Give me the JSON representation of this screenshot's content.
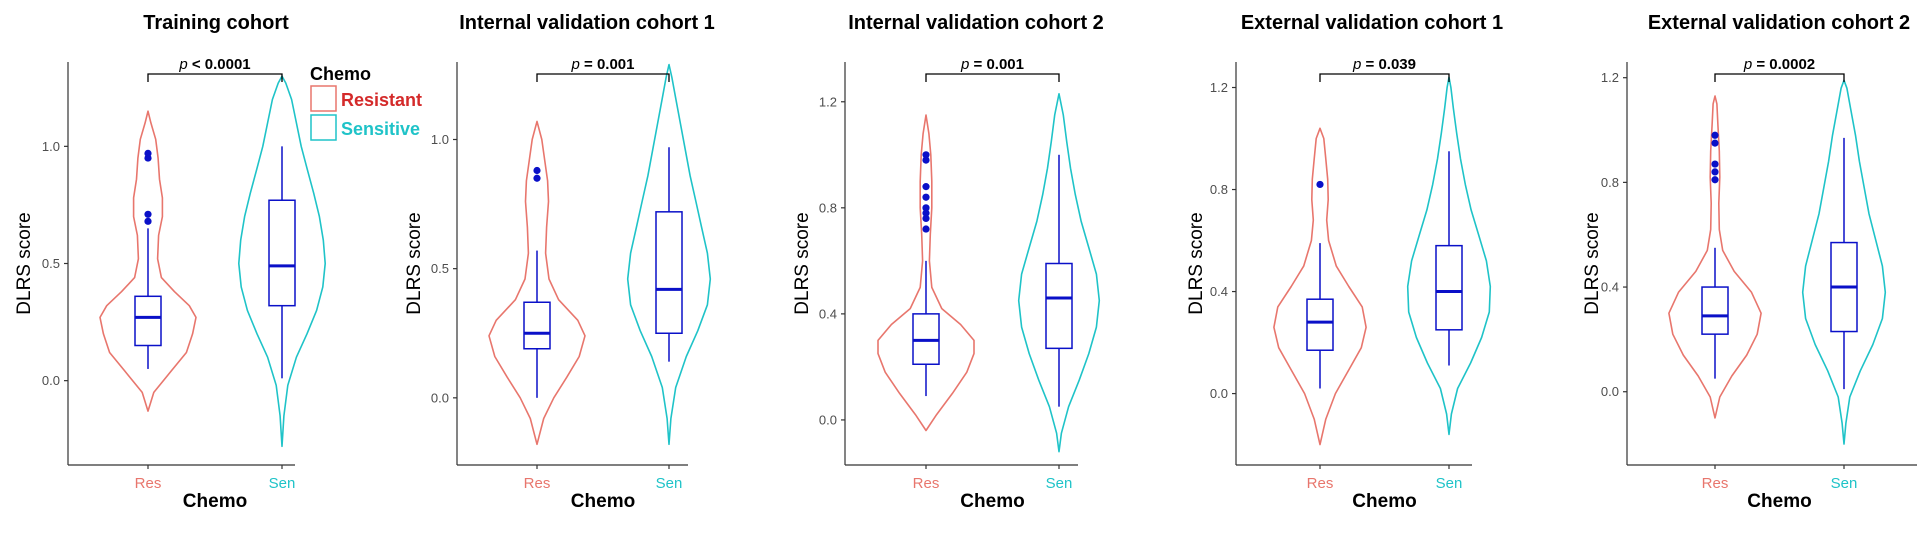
{
  "chart_data": {
    "type": "violin",
    "shared": {
      "xlabel": "Chemo",
      "ylabel": "DLRS score",
      "categories": [
        "Res",
        "Sen"
      ],
      "colors": {
        "Res": "#E8766D",
        "Sen": "#1FC3C8",
        "box": "#0A10C8",
        "outlier": "#0A10C8",
        "axis": "#333333"
      },
      "legend": {
        "title": "Chemo",
        "placement": "top-right of first panel",
        "items": [
          {
            "label": "Resistant",
            "color": "#E8766D",
            "text_color": "#D42A2A"
          },
          {
            "label": "Sensitive",
            "color": "#1FC3C8",
            "text_color": "#1FC3C8"
          }
        ]
      }
    },
    "panels": [
      {
        "title": "Training cohort",
        "pvalue": {
          "prefix": "p",
          "text": " < 0.0001"
        },
        "ylim": [
          -0.36,
          1.36
        ],
        "yticks": [
          0.0,
          0.5,
          1.0
        ],
        "ytick_labels": [
          "0.0",
          "0.5",
          "1.0"
        ],
        "groups": [
          {
            "name": "Res",
            "violin": [
              [
                -0.13,
                0
              ],
              [
                -0.05,
                0.12
              ],
              [
                0.04,
                0.48
              ],
              [
                0.12,
                0.8
              ],
              [
                0.2,
                0.93
              ],
              [
                0.27,
                1.0
              ],
              [
                0.32,
                0.86
              ],
              [
                0.38,
                0.55
              ],
              [
                0.44,
                0.28
              ],
              [
                0.52,
                0.2
              ],
              [
                0.62,
                0.22
              ],
              [
                0.7,
                0.3
              ],
              [
                0.78,
                0.3
              ],
              [
                0.86,
                0.24
              ],
              [
                0.95,
                0.21
              ],
              [
                1.03,
                0.16
              ],
              [
                1.1,
                0.06
              ],
              [
                1.15,
                0
              ]
            ],
            "box": {
              "whisker_low": 0.05,
              "q1": 0.15,
              "median": 0.27,
              "q3": 0.36,
              "whisker_high": 0.65
            },
            "outliers": [
              0.68,
              0.71,
              0.95,
              0.97
            ]
          },
          {
            "name": "Sen",
            "violin": [
              [
                -0.28,
                0
              ],
              [
                -0.15,
                0.04
              ],
              [
                -0.02,
                0.12
              ],
              [
                0.1,
                0.3
              ],
              [
                0.2,
                0.52
              ],
              [
                0.3,
                0.72
              ],
              [
                0.4,
                0.85
              ],
              [
                0.5,
                0.9
              ],
              [
                0.6,
                0.86
              ],
              [
                0.7,
                0.78
              ],
              [
                0.8,
                0.66
              ],
              [
                0.9,
                0.53
              ],
              [
                1.0,
                0.4
              ],
              [
                1.1,
                0.3
              ],
              [
                1.2,
                0.2
              ],
              [
                1.27,
                0.08
              ],
              [
                1.3,
                0
              ]
            ],
            "box": {
              "whisker_low": 0.01,
              "q1": 0.32,
              "median": 0.49,
              "q3": 0.77,
              "whisker_high": 1.0
            },
            "outliers": []
          }
        ]
      },
      {
        "title": "Internal validation cohort 1",
        "pvalue": {
          "prefix": "p",
          "text": " = 0.001"
        },
        "ylim": [
          -0.26,
          1.3
        ],
        "yticks": [
          0.0,
          0.5,
          1.0
        ],
        "ytick_labels": [
          "0.0",
          "0.5",
          "1.0"
        ],
        "groups": [
          {
            "name": "Res",
            "violin": [
              [
                -0.18,
                0
              ],
              [
                -0.08,
                0.14
              ],
              [
                0.0,
                0.35
              ],
              [
                0.08,
                0.62
              ],
              [
                0.16,
                0.88
              ],
              [
                0.24,
                1.0
              ],
              [
                0.3,
                0.85
              ],
              [
                0.38,
                0.45
              ],
              [
                0.46,
                0.25
              ],
              [
                0.56,
                0.18
              ],
              [
                0.66,
                0.2
              ],
              [
                0.76,
                0.24
              ],
              [
                0.84,
                0.22
              ],
              [
                0.92,
                0.16
              ],
              [
                1.0,
                0.1
              ],
              [
                1.07,
                0
              ]
            ],
            "box": {
              "whisker_low": 0.0,
              "q1": 0.19,
              "median": 0.25,
              "q3": 0.37,
              "whisker_high": 0.57
            },
            "outliers": [
              0.85,
              0.88
            ]
          },
          {
            "name": "Sen",
            "violin": [
              [
                -0.18,
                0
              ],
              [
                -0.08,
                0.04
              ],
              [
                0.04,
                0.14
              ],
              [
                0.16,
                0.36
              ],
              [
                0.26,
                0.6
              ],
              [
                0.36,
                0.8
              ],
              [
                0.46,
                0.86
              ],
              [
                0.56,
                0.8
              ],
              [
                0.66,
                0.68
              ],
              [
                0.76,
                0.56
              ],
              [
                0.86,
                0.44
              ],
              [
                0.96,
                0.34
              ],
              [
                1.06,
                0.24
              ],
              [
                1.16,
                0.14
              ],
              [
                1.24,
                0.06
              ],
              [
                1.29,
                0
              ]
            ],
            "box": {
              "whisker_low": 0.14,
              "q1": 0.25,
              "median": 0.42,
              "q3": 0.72,
              "whisker_high": 0.97
            },
            "outliers": []
          }
        ]
      },
      {
        "title": "Internal validation cohort 2",
        "pvalue": {
          "prefix": "p",
          "text": " = 0.001"
        },
        "ylim": [
          -0.17,
          1.35
        ],
        "yticks": [
          0.0,
          0.4,
          0.8,
          1.2
        ],
        "ytick_labels": [
          "0.0",
          "0.4",
          "0.8",
          "1.2"
        ],
        "groups": [
          {
            "name": "Res",
            "violin": [
              [
                -0.04,
                0
              ],
              [
                0.02,
                0.22
              ],
              [
                0.1,
                0.55
              ],
              [
                0.18,
                0.85
              ],
              [
                0.25,
                1.0
              ],
              [
                0.3,
                1.0
              ],
              [
                0.36,
                0.72
              ],
              [
                0.42,
                0.33
              ],
              [
                0.5,
                0.12
              ],
              [
                0.6,
                0.07
              ],
              [
                0.7,
                0.09
              ],
              [
                0.8,
                0.12
              ],
              [
                0.9,
                0.12
              ],
              [
                1.0,
                0.1
              ],
              [
                1.08,
                0.06
              ],
              [
                1.15,
                0
              ]
            ],
            "box": {
              "whisker_low": 0.09,
              "q1": 0.21,
              "median": 0.3,
              "q3": 0.4,
              "whisker_high": 0.6
            },
            "outliers": [
              0.72,
              0.76,
              0.78,
              0.8,
              0.84,
              0.88,
              0.98,
              1.0
            ]
          },
          {
            "name": "Sen",
            "violin": [
              [
                -0.12,
                0
              ],
              [
                -0.05,
                0.05
              ],
              [
                0.05,
                0.2
              ],
              [
                0.15,
                0.42
              ],
              [
                0.25,
                0.62
              ],
              [
                0.35,
                0.78
              ],
              [
                0.45,
                0.84
              ],
              [
                0.55,
                0.78
              ],
              [
                0.65,
                0.62
              ],
              [
                0.75,
                0.46
              ],
              [
                0.85,
                0.34
              ],
              [
                0.95,
                0.24
              ],
              [
                1.05,
                0.16
              ],
              [
                1.15,
                0.09
              ],
              [
                1.23,
                0
              ]
            ],
            "box": {
              "whisker_low": 0.05,
              "q1": 0.27,
              "median": 0.46,
              "q3": 0.59,
              "whisker_high": 1.0
            },
            "outliers": []
          }
        ]
      },
      {
        "title": "External validation cohort 1",
        "pvalue": {
          "prefix": "p",
          "text": " = 0.039"
        },
        "ylim": [
          -0.28,
          1.3
        ],
        "yticks": [
          0.0,
          0.4,
          0.8,
          1.2
        ],
        "ytick_labels": [
          "0.0",
          "0.4",
          "0.8",
          "1.2"
        ],
        "groups": [
          {
            "name": "Res",
            "violin": [
              [
                -0.2,
                0
              ],
              [
                -0.1,
                0.12
              ],
              [
                0.0,
                0.32
              ],
              [
                0.1,
                0.62
              ],
              [
                0.18,
                0.86
              ],
              [
                0.26,
                0.96
              ],
              [
                0.34,
                0.88
              ],
              [
                0.42,
                0.6
              ],
              [
                0.5,
                0.34
              ],
              [
                0.6,
                0.18
              ],
              [
                0.68,
                0.14
              ],
              [
                0.76,
                0.17
              ],
              [
                0.84,
                0.16
              ],
              [
                0.92,
                0.12
              ],
              [
                1.0,
                0.08
              ],
              [
                1.04,
                0
              ]
            ],
            "box": {
              "whisker_low": 0.02,
              "q1": 0.17,
              "median": 0.28,
              "q3": 0.37,
              "whisker_high": 0.59
            },
            "outliers": [
              0.82
            ]
          },
          {
            "name": "Sen",
            "violin": [
              [
                -0.16,
                0
              ],
              [
                -0.08,
                0.05
              ],
              [
                0.02,
                0.18
              ],
              [
                0.12,
                0.45
              ],
              [
                0.22,
                0.68
              ],
              [
                0.32,
                0.84
              ],
              [
                0.42,
                0.86
              ],
              [
                0.52,
                0.78
              ],
              [
                0.62,
                0.62
              ],
              [
                0.72,
                0.46
              ],
              [
                0.82,
                0.34
              ],
              [
                0.92,
                0.24
              ],
              [
                1.02,
                0.16
              ],
              [
                1.12,
                0.09
              ],
              [
                1.2,
                0.04
              ],
              [
                1.24,
                0
              ]
            ],
            "box": {
              "whisker_low": 0.11,
              "q1": 0.25,
              "median": 0.4,
              "q3": 0.58,
              "whisker_high": 0.95
            },
            "outliers": []
          }
        ]
      },
      {
        "title": "External validation cohort 2",
        "pvalue": {
          "prefix": "p",
          "text": " = 0.0002"
        },
        "ylim": [
          -0.28,
          1.26
        ],
        "yticks": [
          0.0,
          0.4,
          0.8,
          1.2
        ],
        "ytick_labels": [
          "0.0",
          "0.4",
          "0.8",
          "1.2"
        ],
        "groups": [
          {
            "name": "Res",
            "violin": [
              [
                -0.1,
                0
              ],
              [
                -0.02,
                0.1
              ],
              [
                0.06,
                0.35
              ],
              [
                0.14,
                0.66
              ],
              [
                0.22,
                0.88
              ],
              [
                0.3,
                0.96
              ],
              [
                0.38,
                0.76
              ],
              [
                0.46,
                0.4
              ],
              [
                0.54,
                0.16
              ],
              [
                0.62,
                0.09
              ],
              [
                0.72,
                0.08
              ],
              [
                0.82,
                0.1
              ],
              [
                0.92,
                0.09
              ],
              [
                1.02,
                0.06
              ],
              [
                1.1,
                0.04
              ],
              [
                1.13,
                0
              ]
            ],
            "box": {
              "whisker_low": 0.05,
              "q1": 0.22,
              "median": 0.29,
              "q3": 0.4,
              "whisker_high": 0.55
            },
            "outliers": [
              0.81,
              0.84,
              0.87,
              0.95,
              0.98
            ]
          },
          {
            "name": "Sen",
            "violin": [
              [
                -0.2,
                0
              ],
              [
                -0.12,
                0.04
              ],
              [
                -0.02,
                0.12
              ],
              [
                0.08,
                0.34
              ],
              [
                0.18,
                0.6
              ],
              [
                0.28,
                0.8
              ],
              [
                0.38,
                0.86
              ],
              [
                0.48,
                0.8
              ],
              [
                0.58,
                0.66
              ],
              [
                0.68,
                0.52
              ],
              [
                0.78,
                0.42
              ],
              [
                0.88,
                0.32
              ],
              [
                0.98,
                0.24
              ],
              [
                1.08,
                0.14
              ],
              [
                1.16,
                0.06
              ],
              [
                1.19,
                0
              ]
            ],
            "box": {
              "whisker_low": 0.01,
              "q1": 0.23,
              "median": 0.4,
              "q3": 0.57,
              "whisker_high": 0.97
            },
            "outliers": []
          }
        ]
      }
    ]
  }
}
